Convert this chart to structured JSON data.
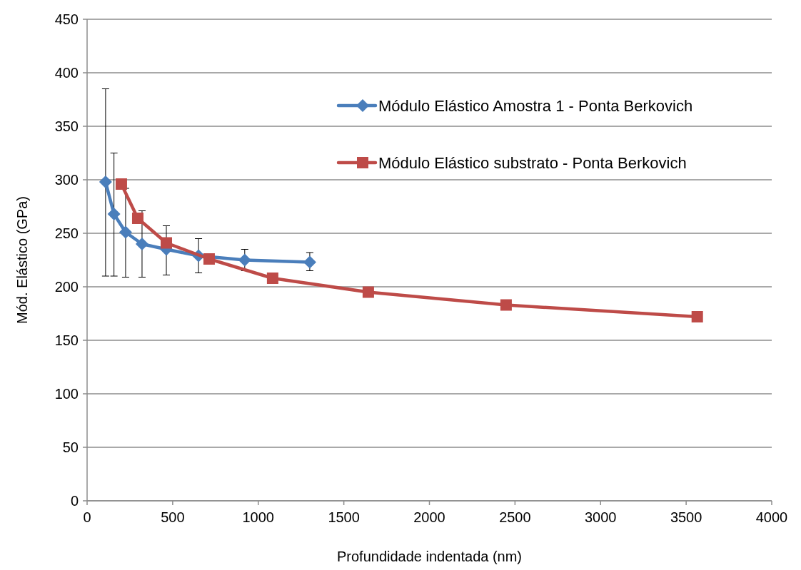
{
  "chart_data": {
    "type": "line",
    "xlabel": "Profundidade indentada (nm)",
    "ylabel": "Mód. Elástico (GPa)",
    "xlim": [
      0,
      4000
    ],
    "xticks": [
      0,
      500,
      1000,
      1500,
      2000,
      2500,
      3000,
      3500,
      4000
    ],
    "ylim": [
      0,
      450
    ],
    "yticks": [
      0,
      50,
      100,
      150,
      200,
      250,
      300,
      350,
      400,
      450
    ],
    "grid": "y",
    "legend": "top right",
    "series": [
      {
        "name": "Módulo Elástico Amostra 1 - Ponta Berkovich",
        "color": "#4a7ebb",
        "marker": "diamond",
        "x": [
          108,
          157,
          225,
          321,
          463,
          651,
          921,
          1301
        ],
        "values": [
          298,
          268,
          251,
          240,
          235,
          229,
          225,
          223
        ],
        "errors": [
          [
            210,
            385
          ],
          [
            210,
            325
          ],
          [
            209,
            292
          ],
          [
            209,
            271
          ],
          [
            211,
            257
          ],
          [
            213,
            245
          ],
          [
            215,
            235
          ],
          [
            215,
            232
          ]
        ]
      },
      {
        "name": "Módulo Elástico substrato - Ponta Berkovich",
        "color": "#be4b48",
        "marker": "square",
        "x": [
          200,
          296,
          463,
          713,
          1084,
          1643,
          2448,
          3565
        ],
        "values": [
          296,
          264,
          241,
          226,
          208,
          195,
          183,
          172
        ]
      }
    ]
  }
}
